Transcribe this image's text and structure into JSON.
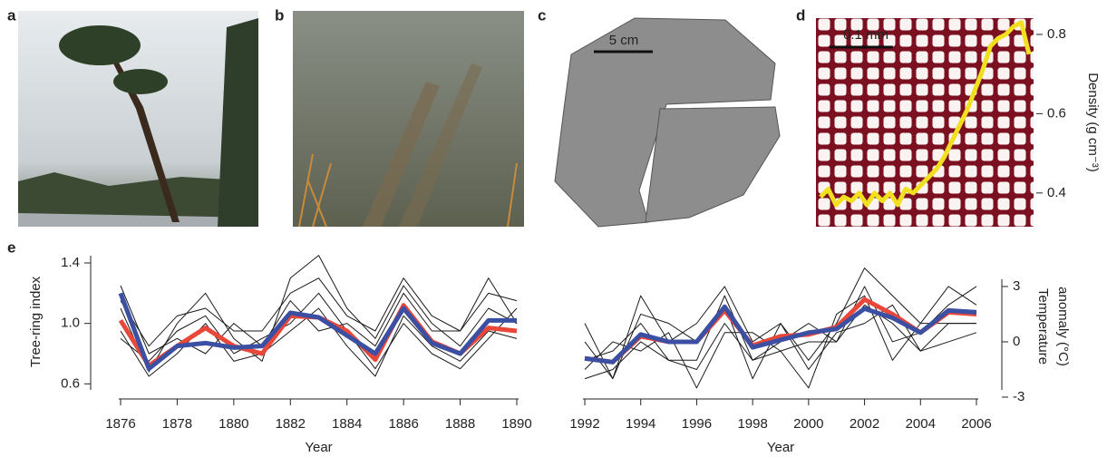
{
  "panels": [
    {
      "label": "a"
    },
    {
      "label": "b"
    },
    {
      "label": "c",
      "scale_bar": "5 cm"
    },
    {
      "label": "d",
      "scale_bar": "0.1 mm"
    },
    {
      "label": "e"
    }
  ],
  "chart_data": [
    {
      "type": "line",
      "ylabel": "Density (g cm⁻³)",
      "ylim": [
        0.315,
        0.841
      ],
      "yticks": [
        0.4,
        0.6,
        0.8
      ],
      "series": [
        {
          "color": "#f0e020",
          "values": [
            0.39,
            0.41,
            0.37,
            0.39,
            0.38,
            0.4,
            0.37,
            0.4,
            0.38,
            0.4,
            0.37,
            0.41,
            0.4,
            0.42,
            0.44,
            0.46,
            0.49,
            0.53,
            0.57,
            0.61,
            0.66,
            0.71,
            0.77,
            0.79,
            0.8,
            0.82,
            0.83,
            0.75
          ]
        }
      ]
    },
    {
      "type": "line",
      "xlabel": "Year",
      "ylabel": "Tree-ring index",
      "x": [
        1876,
        1877,
        1878,
        1879,
        1880,
        1881,
        1882,
        1883,
        1884,
        1885,
        1886,
        1887,
        1888,
        1889,
        1890
      ],
      "xlim": [
        1876,
        1890
      ],
      "xticks": [
        1876,
        1878,
        1880,
        1882,
        1884,
        1886,
        1888,
        1890
      ],
      "ylim": [
        0.5,
        1.52
      ],
      "yticks": [
        0.6,
        {
          "value": 1,
          "label": "1.0"
        },
        1.4
      ],
      "series": [
        {
          "color": "#1a1a1a",
          "values": [
            1.1,
            0.68,
            1.0,
            1.2,
            0.9,
            0.75,
            1.3,
            1.45,
            1.1,
            0.9,
            1.25,
            1.0,
            0.85,
            1.1,
            1.0
          ]
        },
        {
          "color": "#1a1a1a",
          "values": [
            0.9,
            0.75,
            0.95,
            1.05,
            0.8,
            0.9,
            1.0,
            1.2,
            0.95,
            0.7,
            1.0,
            0.8,
            0.7,
            0.9,
            1.1
          ]
        },
        {
          "color": "#1a1a1a",
          "values": [
            1.25,
            0.8,
            0.9,
            0.8,
            1.0,
            0.85,
            1.15,
            0.95,
            1.0,
            0.85,
            1.2,
            0.95,
            0.95,
            1.3,
            1.0
          ]
        },
        {
          "color": "#1a1a1a",
          "values": [
            0.95,
            0.65,
            0.8,
            1.0,
            0.75,
            0.8,
            0.95,
            1.1,
            0.85,
            0.65,
            1.05,
            0.85,
            0.75,
            0.95,
            0.9
          ]
        },
        {
          "color": "#1a1a1a",
          "values": [
            1.15,
            0.85,
            1.05,
            1.1,
            0.95,
            0.95,
            1.2,
            1.3,
            1.05,
            0.95,
            1.3,
            1.05,
            0.95,
            1.2,
            1.15
          ]
        },
        {
          "color": "#e8473a",
          "values": [
            1.02,
            0.72,
            0.85,
            0.97,
            0.85,
            0.8,
            1.05,
            1.04,
            0.95,
            0.76,
            1.12,
            0.88,
            0.8,
            0.97,
            0.95
          ]
        },
        {
          "color": "#3b4fa3",
          "values": [
            1.2,
            0.7,
            0.85,
            0.87,
            0.84,
            0.85,
            1.07,
            1.04,
            0.92,
            0.8,
            1.1,
            0.87,
            0.8,
            1.02,
            1.02
          ]
        }
      ]
    },
    {
      "type": "line",
      "xlabel": "Year",
      "y2label": [
        "Temperature",
        "anomaly (°C)"
      ],
      "x": [
        1992,
        1993,
        1994,
        1995,
        1996,
        1997,
        1998,
        1999,
        2000,
        2001,
        2002,
        2003,
        2004,
        2005,
        2006
      ],
      "xlim": [
        1992,
        2006
      ],
      "xticks": [
        1992,
        1994,
        1996,
        1998,
        2000,
        2002,
        2004,
        2006
      ],
      "y2lim": [
        -3.1,
        5.26
      ],
      "y2ticks": [
        -3,
        0,
        3
      ],
      "series": [
        {
          "color": "#1a1a1a",
          "axis": "y2",
          "values": [
            1,
            -2,
            2.5,
            0,
            1,
            3,
            0,
            1,
            -1,
            1,
            4,
            2.5,
            1,
            3,
            2
          ]
        },
        {
          "color": "#1a1a1a",
          "axis": "y2",
          "values": [
            -1,
            -0.5,
            1,
            -1,
            -1.5,
            1,
            -1,
            -0.5,
            0,
            0,
            2,
            1,
            -0.5,
            1,
            1
          ]
        },
        {
          "color": "#1a1a1a",
          "axis": "y2",
          "values": [
            -2,
            -1.5,
            0,
            -1,
            -1,
            2.5,
            -1,
            0,
            1,
            0,
            3,
            0,
            0.5,
            2,
            3
          ]
        },
        {
          "color": "#1a1a1a",
          "axis": "y2",
          "values": [
            0,
            -2,
            1.5,
            1,
            0,
            2,
            -2,
            1,
            -1.5,
            0.5,
            1,
            2,
            -0.5,
            0,
            0.5
          ]
        },
        {
          "color": "#1a1a1a",
          "axis": "y2",
          "values": [
            -1.5,
            0,
            -0.5,
            0.5,
            -2.5,
            0.5,
            0.5,
            -0.5,
            -2.5,
            1.5,
            2.5,
            -1,
            1,
            1,
            1
          ]
        },
        {
          "color": "#e8473a",
          "axis": "y2",
          "values": [
            -0.9,
            -1.1,
            0.3,
            0.0,
            0.0,
            1.7,
            -0.2,
            0.3,
            0.4,
            0.8,
            2.3,
            1.5,
            0.5,
            1.6,
            1.5
          ]
        },
        {
          "color": "#3b4fa3",
          "axis": "y2",
          "values": [
            -0.9,
            -1.1,
            0.4,
            0.0,
            0.0,
            1.9,
            -0.3,
            0.1,
            0.5,
            0.7,
            1.8,
            1.3,
            0.5,
            1.7,
            1.6
          ]
        }
      ]
    }
  ]
}
